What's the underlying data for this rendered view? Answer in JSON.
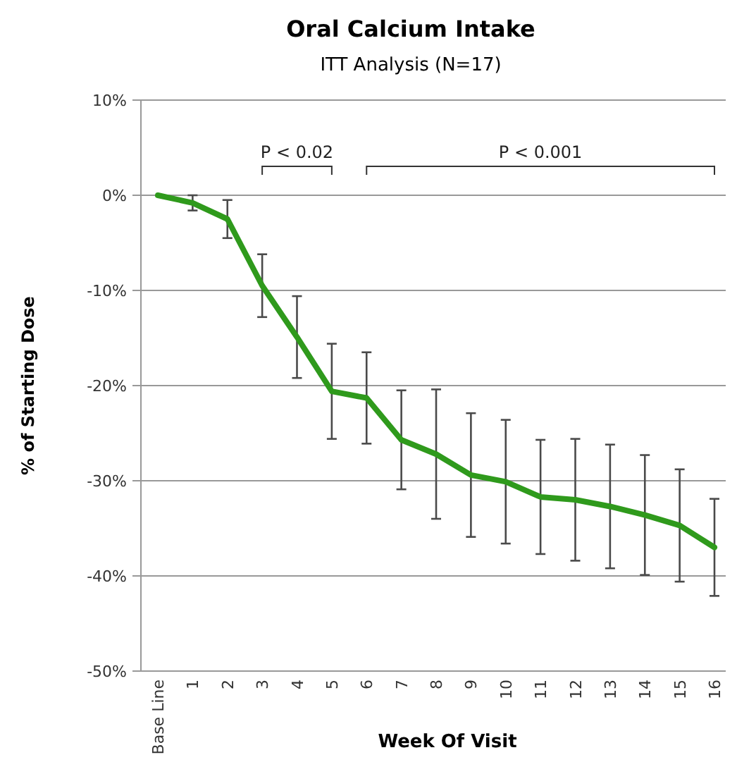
{
  "chart_data": {
    "type": "line",
    "title": "Oral Calcium Intake",
    "subtitle": "ITT Analysis (N=17)",
    "xlabel": "Week Of Visit",
    "ylabel": "% of Starting Dose",
    "categories": [
      "Base Line",
      "1",
      "2",
      "3",
      "4",
      "5",
      "6",
      "7",
      "8",
      "9",
      "10",
      "11",
      "12",
      "13",
      "14",
      "15",
      "16"
    ],
    "series": [
      {
        "color": "#2f9a1c",
        "values": [
          0,
          -0.8,
          -2.5,
          -9.5,
          -14.9,
          -20.6,
          -21.3,
          -25.7,
          -27.2,
          -29.4,
          -30.1,
          -31.7,
          -32.0,
          -32.7,
          -33.6,
          -34.7,
          -37.0
        ],
        "errors": [
          null,
          0.8,
          2,
          3.3,
          4.3,
          5,
          4.8,
          5.2,
          6.8,
          6.5,
          6.5,
          6,
          6.4,
          6.5,
          6.3,
          5.9,
          5.1
        ]
      }
    ],
    "ylim": [
      -50,
      10
    ],
    "yticks": [
      {
        "value": -50,
        "label": "-50%"
      },
      {
        "value": -40,
        "label": "-40%"
      },
      {
        "value": -30,
        "label": "-30%"
      },
      {
        "value": -20,
        "label": "-20%"
      },
      {
        "value": -10,
        "label": "-10%"
      },
      {
        "value": 0,
        "label": "0%"
      },
      {
        "value": 10,
        "label": "10%"
      }
    ],
    "grid": "y",
    "marker": "none",
    "line_style": "solid",
    "annotations": [
      "P < 0.02",
      "P < 0.001"
    ]
  }
}
